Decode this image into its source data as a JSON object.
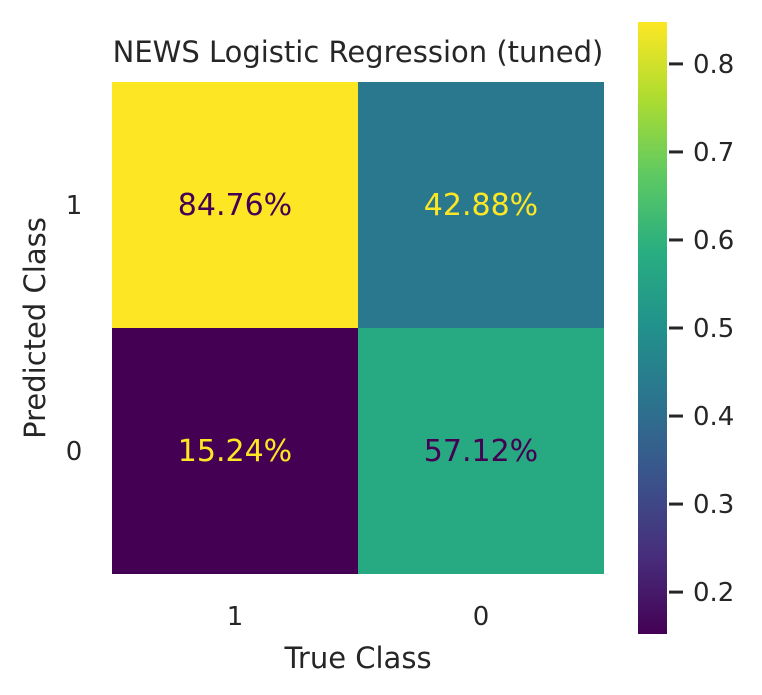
{
  "chart_data": {
    "type": "heatmap",
    "title": "NEWS Logistic Regression (tuned)",
    "xlabel": "True Class",
    "ylabel": "Predicted Class",
    "x_categories": [
      "1",
      "0"
    ],
    "y_categories": [
      "1",
      "0"
    ],
    "values": [
      [
        0.8476,
        0.4288
      ],
      [
        0.1524,
        0.5712
      ]
    ],
    "cell_labels": [
      [
        "84.76%",
        "42.88%"
      ],
      [
        "15.24%",
        "57.12%"
      ]
    ],
    "colormap": "viridis",
    "colorbar": {
      "range": [
        0.1524,
        0.8476
      ],
      "ticks": [
        0.2,
        0.3,
        0.4,
        0.5,
        0.6,
        0.7,
        0.8
      ],
      "tick_labels": [
        "0.2",
        "0.3",
        "0.4",
        "0.5",
        "0.6",
        "0.7",
        "0.8"
      ]
    },
    "grid": false
  }
}
